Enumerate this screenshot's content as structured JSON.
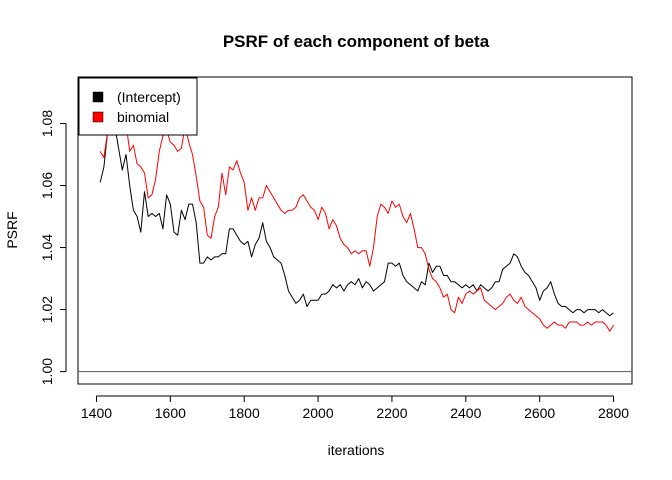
{
  "chart_data": {
    "type": "line",
    "title": "PSRF of each component of beta",
    "xlabel": "iterations",
    "ylabel": "PSRF",
    "xlim": [
      1350,
      2850
    ],
    "ylim": [
      0.996,
      1.095
    ],
    "xticks": [
      1400,
      1600,
      1800,
      2000,
      2200,
      2400,
      2600,
      2800
    ],
    "yticks": [
      1.0,
      1.02,
      1.04,
      1.06,
      1.08
    ],
    "ytick_labels": [
      "1.00",
      "1.02",
      "1.04",
      "1.06",
      "1.08"
    ],
    "reference_line": 1.0,
    "legend_position": "top-left",
    "series": [
      {
        "name": "(Intercept)",
        "color": "#000000",
        "points": [
          [
            1410,
            1.061
          ],
          [
            1420,
            1.066
          ],
          [
            1430,
            1.077
          ],
          [
            1440,
            1.081
          ],
          [
            1450,
            1.079
          ],
          [
            1460,
            1.072
          ],
          [
            1470,
            1.065
          ],
          [
            1480,
            1.07
          ],
          [
            1490,
            1.06
          ],
          [
            1500,
            1.052
          ],
          [
            1510,
            1.05
          ],
          [
            1520,
            1.045
          ],
          [
            1530,
            1.058
          ],
          [
            1540,
            1.05
          ],
          [
            1550,
            1.051
          ],
          [
            1560,
            1.05
          ],
          [
            1570,
            1.051
          ],
          [
            1580,
            1.046
          ],
          [
            1590,
            1.057
          ],
          [
            1600,
            1.054
          ],
          [
            1610,
            1.045
          ],
          [
            1620,
            1.044
          ],
          [
            1630,
            1.052
          ],
          [
            1640,
            1.049
          ],
          [
            1650,
            1.054
          ],
          [
            1660,
            1.054
          ],
          [
            1670,
            1.048
          ],
          [
            1680,
            1.035
          ],
          [
            1690,
            1.035
          ],
          [
            1700,
            1.037
          ],
          [
            1710,
            1.036
          ],
          [
            1720,
            1.037
          ],
          [
            1730,
            1.037
          ],
          [
            1740,
            1.038
          ],
          [
            1750,
            1.038
          ],
          [
            1760,
            1.046
          ],
          [
            1770,
            1.046
          ],
          [
            1780,
            1.044
          ],
          [
            1790,
            1.042
          ],
          [
            1800,
            1.041
          ],
          [
            1810,
            1.042
          ],
          [
            1820,
            1.037
          ],
          [
            1830,
            1.041
          ],
          [
            1840,
            1.043
          ],
          [
            1850,
            1.048
          ],
          [
            1860,
            1.042
          ],
          [
            1870,
            1.04
          ],
          [
            1880,
            1.037
          ],
          [
            1890,
            1.036
          ],
          [
            1900,
            1.035
          ],
          [
            1910,
            1.031
          ],
          [
            1920,
            1.026
          ],
          [
            1930,
            1.024
          ],
          [
            1940,
            1.022
          ],
          [
            1950,
            1.023
          ],
          [
            1960,
            1.025
          ],
          [
            1970,
            1.021
          ],
          [
            1980,
            1.023
          ],
          [
            1990,
            1.023
          ],
          [
            2000,
            1.023
          ],
          [
            2010,
            1.025
          ],
          [
            2020,
            1.025
          ],
          [
            2030,
            1.026
          ],
          [
            2040,
            1.028
          ],
          [
            2050,
            1.027
          ],
          [
            2060,
            1.028
          ],
          [
            2070,
            1.026
          ],
          [
            2080,
            1.028
          ],
          [
            2090,
            1.029
          ],
          [
            2100,
            1.028
          ],
          [
            2110,
            1.03
          ],
          [
            2120,
            1.027
          ],
          [
            2130,
            1.029
          ],
          [
            2140,
            1.028
          ],
          [
            2150,
            1.026
          ],
          [
            2160,
            1.027
          ],
          [
            2170,
            1.028
          ],
          [
            2180,
            1.029
          ],
          [
            2190,
            1.035
          ],
          [
            2200,
            1.035
          ],
          [
            2210,
            1.034
          ],
          [
            2220,
            1.035
          ],
          [
            2230,
            1.031
          ],
          [
            2240,
            1.029
          ],
          [
            2250,
            1.028
          ],
          [
            2260,
            1.027
          ],
          [
            2270,
            1.026
          ],
          [
            2280,
            1.029
          ],
          [
            2290,
            1.028
          ],
          [
            2300,
            1.035
          ],
          [
            2310,
            1.032
          ],
          [
            2320,
            1.034
          ],
          [
            2330,
            1.034
          ],
          [
            2340,
            1.031
          ],
          [
            2350,
            1.031
          ],
          [
            2360,
            1.029
          ],
          [
            2370,
            1.029
          ],
          [
            2380,
            1.028
          ],
          [
            2390,
            1.027
          ],
          [
            2400,
            1.028
          ],
          [
            2410,
            1.027
          ],
          [
            2420,
            1.028
          ],
          [
            2430,
            1.026
          ],
          [
            2440,
            1.028
          ],
          [
            2450,
            1.027
          ],
          [
            2460,
            1.026
          ],
          [
            2470,
            1.027
          ],
          [
            2480,
            1.029
          ],
          [
            2490,
            1.029
          ],
          [
            2500,
            1.033
          ],
          [
            2510,
            1.034
          ],
          [
            2520,
            1.035
          ],
          [
            2530,
            1.038
          ],
          [
            2540,
            1.037
          ],
          [
            2550,
            1.034
          ],
          [
            2560,
            1.032
          ],
          [
            2570,
            1.031
          ],
          [
            2580,
            1.029
          ],
          [
            2590,
            1.027
          ],
          [
            2600,
            1.023
          ],
          [
            2610,
            1.026
          ],
          [
            2620,
            1.027
          ],
          [
            2630,
            1.029
          ],
          [
            2640,
            1.025
          ],
          [
            2650,
            1.022
          ],
          [
            2660,
            1.021
          ],
          [
            2670,
            1.021
          ],
          [
            2680,
            1.02
          ],
          [
            2690,
            1.019
          ],
          [
            2700,
            1.02
          ],
          [
            2710,
            1.02
          ],
          [
            2720,
            1.019
          ],
          [
            2730,
            1.02
          ],
          [
            2740,
            1.02
          ],
          [
            2750,
            1.02
          ],
          [
            2760,
            1.019
          ],
          [
            2770,
            1.02
          ],
          [
            2780,
            1.019
          ],
          [
            2790,
            1.018
          ],
          [
            2800,
            1.019
          ]
        ]
      },
      {
        "name": "binomial",
        "color": "#ff0000",
        "points": [
          [
            1410,
            1.071
          ],
          [
            1420,
            1.069
          ],
          [
            1430,
            1.077
          ],
          [
            1440,
            1.084
          ],
          [
            1450,
            1.086
          ],
          [
            1460,
            1.083
          ],
          [
            1470,
            1.078
          ],
          [
            1480,
            1.08
          ],
          [
            1490,
            1.071
          ],
          [
            1500,
            1.073
          ],
          [
            1510,
            1.067
          ],
          [
            1520,
            1.066
          ],
          [
            1530,
            1.064
          ],
          [
            1540,
            1.056
          ],
          [
            1550,
            1.057
          ],
          [
            1560,
            1.062
          ],
          [
            1570,
            1.071
          ],
          [
            1580,
            1.076
          ],
          [
            1590,
            1.078
          ],
          [
            1600,
            1.074
          ],
          [
            1610,
            1.073
          ],
          [
            1620,
            1.071
          ],
          [
            1630,
            1.072
          ],
          [
            1640,
            1.079
          ],
          [
            1650,
            1.074
          ],
          [
            1660,
            1.07
          ],
          [
            1670,
            1.063
          ],
          [
            1680,
            1.055
          ],
          [
            1690,
            1.053
          ],
          [
            1700,
            1.044
          ],
          [
            1710,
            1.043
          ],
          [
            1720,
            1.05
          ],
          [
            1730,
            1.053
          ],
          [
            1740,
            1.064
          ],
          [
            1750,
            1.057
          ],
          [
            1760,
            1.066
          ],
          [
            1770,
            1.065
          ],
          [
            1780,
            1.068
          ],
          [
            1790,
            1.064
          ],
          [
            1800,
            1.061
          ],
          [
            1810,
            1.052
          ],
          [
            1820,
            1.056
          ],
          [
            1830,
            1.052
          ],
          [
            1840,
            1.056
          ],
          [
            1850,
            1.056
          ],
          [
            1860,
            1.06
          ],
          [
            1870,
            1.058
          ],
          [
            1880,
            1.056
          ],
          [
            1890,
            1.054
          ],
          [
            1900,
            1.052
          ],
          [
            1910,
            1.051
          ],
          [
            1920,
            1.052
          ],
          [
            1930,
            1.052
          ],
          [
            1940,
            1.053
          ],
          [
            1950,
            1.056
          ],
          [
            1960,
            1.057
          ],
          [
            1970,
            1.055
          ],
          [
            1980,
            1.053
          ],
          [
            1990,
            1.052
          ],
          [
            2000,
            1.049
          ],
          [
            2010,
            1.053
          ],
          [
            2020,
            1.051
          ],
          [
            2030,
            1.046
          ],
          [
            2040,
            1.049
          ],
          [
            2050,
            1.047
          ],
          [
            2060,
            1.043
          ],
          [
            2070,
            1.041
          ],
          [
            2080,
            1.04
          ],
          [
            2090,
            1.038
          ],
          [
            2100,
            1.039
          ],
          [
            2110,
            1.038
          ],
          [
            2120,
            1.039
          ],
          [
            2130,
            1.039
          ],
          [
            2140,
            1.034
          ],
          [
            2150,
            1.04
          ],
          [
            2160,
            1.05
          ],
          [
            2170,
            1.054
          ],
          [
            2180,
            1.053
          ],
          [
            2190,
            1.051
          ],
          [
            2200,
            1.055
          ],
          [
            2210,
            1.053
          ],
          [
            2220,
            1.054
          ],
          [
            2230,
            1.05
          ],
          [
            2240,
            1.048
          ],
          [
            2250,
            1.051
          ],
          [
            2260,
            1.046
          ],
          [
            2270,
            1.04
          ],
          [
            2280,
            1.04
          ],
          [
            2290,
            1.038
          ],
          [
            2300,
            1.033
          ],
          [
            2310,
            1.03
          ],
          [
            2320,
            1.029
          ],
          [
            2330,
            1.027
          ],
          [
            2340,
            1.024
          ],
          [
            2350,
            1.025
          ],
          [
            2360,
            1.02
          ],
          [
            2370,
            1.019
          ],
          [
            2380,
            1.024
          ],
          [
            2390,
            1.022
          ],
          [
            2400,
            1.025
          ],
          [
            2410,
            1.026
          ],
          [
            2420,
            1.025
          ],
          [
            2430,
            1.026
          ],
          [
            2440,
            1.027
          ],
          [
            2450,
            1.023
          ],
          [
            2460,
            1.022
          ],
          [
            2470,
            1.021
          ],
          [
            2480,
            1.02
          ],
          [
            2490,
            1.021
          ],
          [
            2500,
            1.022
          ],
          [
            2510,
            1.024
          ],
          [
            2520,
            1.025
          ],
          [
            2530,
            1.023
          ],
          [
            2540,
            1.022
          ],
          [
            2550,
            1.024
          ],
          [
            2560,
            1.021
          ],
          [
            2570,
            1.02
          ],
          [
            2580,
            1.019
          ],
          [
            2590,
            1.018
          ],
          [
            2600,
            1.017
          ],
          [
            2610,
            1.015
          ],
          [
            2620,
            1.014
          ],
          [
            2630,
            1.015
          ],
          [
            2640,
            1.016
          ],
          [
            2650,
            1.015
          ],
          [
            2660,
            1.015
          ],
          [
            2670,
            1.014
          ],
          [
            2680,
            1.016
          ],
          [
            2690,
            1.016
          ],
          [
            2700,
            1.016
          ],
          [
            2710,
            1.015
          ],
          [
            2720,
            1.015
          ],
          [
            2730,
            1.016
          ],
          [
            2740,
            1.015
          ],
          [
            2750,
            1.016
          ],
          [
            2760,
            1.016
          ],
          [
            2770,
            1.016
          ],
          [
            2780,
            1.015
          ],
          [
            2790,
            1.013
          ],
          [
            2800,
            1.015
          ]
        ]
      }
    ]
  }
}
